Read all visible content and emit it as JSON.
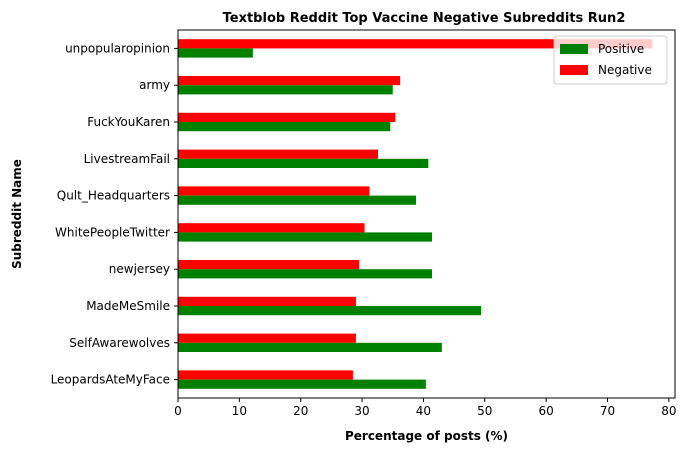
{
  "chart_data": {
    "type": "bar",
    "orientation": "horizontal",
    "title": "Textblob Reddit Top Vaccine Negative Subreddits Run2",
    "xlabel": "Percentage of posts (%)",
    "ylabel": "Subreddit Name",
    "xlim": [
      0,
      81
    ],
    "xticks": [
      0,
      10,
      20,
      30,
      40,
      50,
      60,
      70,
      80
    ],
    "grid": false,
    "legend_position": "top-right",
    "categories": [
      "unpopularopinion",
      "army",
      "FuckYouKaren",
      "LivestreamFail",
      "Qult_Headquarters",
      "WhitePeopleTwitter",
      "newjersey",
      "MadeMeSmile",
      "SelfAwarewolves",
      "LeopardsAteMyFace"
    ],
    "series": [
      {
        "name": "Positive",
        "color": "#008000",
        "values": [
          12.2,
          35.0,
          34.6,
          40.8,
          38.8,
          41.4,
          41.4,
          49.4,
          43.0,
          40.4
        ]
      },
      {
        "name": "Negative",
        "color": "#ff0000",
        "values": [
          77.3,
          36.2,
          35.4,
          32.6,
          31.2,
          30.4,
          29.5,
          29.0,
          29.0,
          28.5
        ]
      }
    ]
  }
}
